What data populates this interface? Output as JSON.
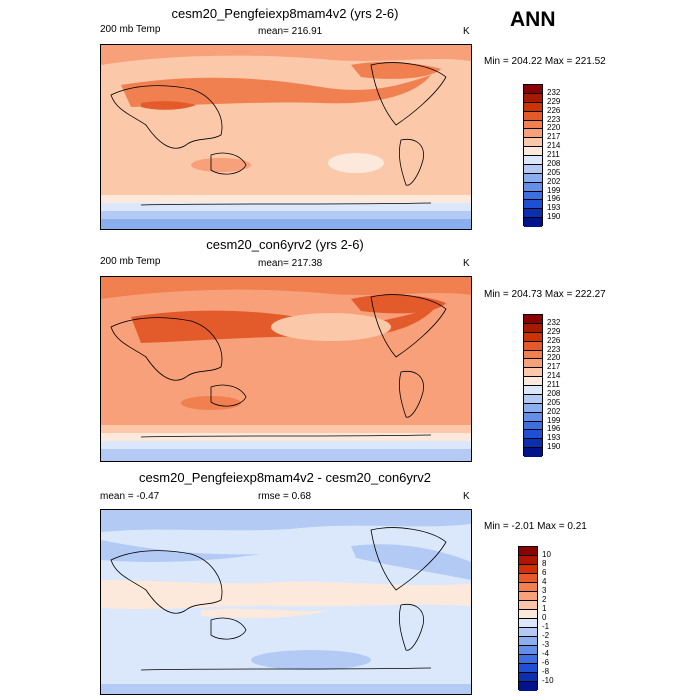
{
  "season": "ANN",
  "panels": [
    {
      "title": "cesm20_Pengfeiexp8mam4v2 (yrs 2-6)",
      "left_label": "200 mb Temp",
      "center_label": "mean= 216.91",
      "units": "K",
      "minmax": "Min = 204.22 Max = 221.52",
      "palette": "abs",
      "levels": [
        "232",
        "229",
        "226",
        "223",
        "220",
        "217",
        "214",
        "211",
        "208",
        "205",
        "202",
        "199",
        "196",
        "193",
        "190"
      ]
    },
    {
      "title": "cesm20_con6yrv2 (yrs 2-6)",
      "left_label": "200 mb Temp",
      "center_label": "mean= 217.38",
      "units": "K",
      "minmax": "Min = 204.73 Max = 222.27",
      "palette": "abs",
      "levels": [
        "232",
        "229",
        "226",
        "223",
        "220",
        "217",
        "214",
        "211",
        "208",
        "205",
        "202",
        "199",
        "196",
        "193",
        "190"
      ]
    },
    {
      "title": "cesm20_Pengfeiexp8mam4v2 - cesm20_con6yrv2",
      "left_label": "mean =  -0.47",
      "center_label": "rmse =   0.68",
      "units": "K",
      "minmax": "Min =  -2.01 Max =   0.21",
      "palette": "diff",
      "levels": [
        "10",
        "8",
        "6",
        "4",
        "3",
        "2",
        "1",
        "0",
        "-1",
        "-2",
        "-3",
        "-4",
        "-6",
        "-8",
        "-10"
      ]
    }
  ],
  "colors": {
    "abs_scale": [
      "#8b0000",
      "#a51a00",
      "#cc3300",
      "#e35a2b",
      "#f08050",
      "#f7a07a",
      "#fbc8aa",
      "#fde9dc",
      "#dbe8fb",
      "#b3cbf4",
      "#8aaeee",
      "#648fe8",
      "#3d6fe0",
      "#1f4fd3",
      "#0a2fb0",
      "#00138a"
    ],
    "diff_scale": [
      "#8b0000",
      "#b01500",
      "#d23000",
      "#e85a2a",
      "#f28050",
      "#f8a27a",
      "#fcc5a8",
      "#fde9dc",
      "#dbe8fb",
      "#b3cbf4",
      "#8aaeee",
      "#648fe8",
      "#3d6fe0",
      "#1f4fd3",
      "#0a2fb0",
      "#00138a"
    ]
  }
}
